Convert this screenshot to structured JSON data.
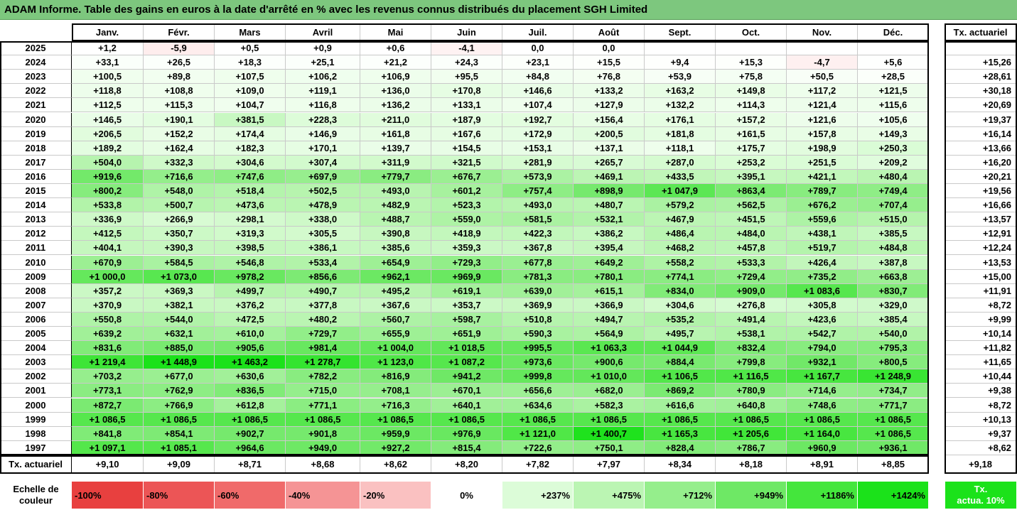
{
  "title": "ADAM Informe. Table des gains en euros à la date d'arrêté en % avec les revenus connus distribués du placement SGH Limited",
  "chart_data": {
    "type": "heatmap",
    "months": [
      "Janv.",
      "Févr.",
      "Mars",
      "Avril",
      "Mai",
      "Juin",
      "Juil.",
      "Août",
      "Sept.",
      "Oct.",
      "Nov.",
      "Déc."
    ],
    "rate_header": "Tx. actuariel",
    "rows": [
      {
        "year": "2025",
        "values": [
          "+1,2",
          "-5,9",
          "+0,5",
          "+0,9",
          "+0,6",
          "-4,1",
          "0,0",
          "0,0",
          "",
          "",
          "",
          ""
        ],
        "rate": ""
      },
      {
        "year": "2024",
        "values": [
          "+33,1",
          "+26,5",
          "+18,3",
          "+25,1",
          "+21,2",
          "+24,3",
          "+23,1",
          "+15,5",
          "+9,4",
          "+15,3",
          "-4,7",
          "+5,6"
        ],
        "rate": "+15,26"
      },
      {
        "year": "2023",
        "values": [
          "+100,5",
          "+89,8",
          "+107,5",
          "+106,2",
          "+106,9",
          "+95,5",
          "+84,8",
          "+76,8",
          "+53,9",
          "+75,8",
          "+50,5",
          "+28,5"
        ],
        "rate": "+28,61"
      },
      {
        "year": "2022",
        "values": [
          "+118,8",
          "+108,8",
          "+109,0",
          "+119,1",
          "+136,0",
          "+170,8",
          "+146,6",
          "+133,2",
          "+163,2",
          "+149,8",
          "+117,2",
          "+121,5"
        ],
        "rate": "+30,18"
      },
      {
        "year": "2021",
        "values": [
          "+112,5",
          "+115,3",
          "+104,7",
          "+116,8",
          "+136,2",
          "+133,1",
          "+107,4",
          "+127,9",
          "+132,2",
          "+114,3",
          "+121,4",
          "+115,6"
        ],
        "rate": "+20,69"
      },
      {
        "year": "2020",
        "values": [
          "+146,5",
          "+190,1",
          "+381,5",
          "+228,3",
          "+211,0",
          "+187,9",
          "+192,7",
          "+156,4",
          "+176,1",
          "+157,2",
          "+121,6",
          "+105,6"
        ],
        "rate": "+19,37"
      },
      {
        "year": "2019",
        "values": [
          "+206,5",
          "+152,2",
          "+174,4",
          "+146,9",
          "+161,8",
          "+167,6",
          "+172,9",
          "+200,5",
          "+181,8",
          "+161,5",
          "+157,8",
          "+149,3"
        ],
        "rate": "+16,14"
      },
      {
        "year": "2018",
        "values": [
          "+189,2",
          "+162,4",
          "+182,3",
          "+170,1",
          "+139,7",
          "+154,5",
          "+153,1",
          "+137,1",
          "+118,1",
          "+175,7",
          "+198,9",
          "+250,3"
        ],
        "rate": "+13,66"
      },
      {
        "year": "2017",
        "values": [
          "+504,0",
          "+332,3",
          "+304,6",
          "+307,4",
          "+311,9",
          "+321,5",
          "+281,9",
          "+265,7",
          "+287,0",
          "+253,2",
          "+251,5",
          "+209,2"
        ],
        "rate": "+16,20"
      },
      {
        "year": "2016",
        "values": [
          "+919,6",
          "+716,6",
          "+747,6",
          "+697,9",
          "+779,7",
          "+676,7",
          "+573,9",
          "+469,1",
          "+433,5",
          "+395,1",
          "+421,1",
          "+480,4"
        ],
        "rate": "+20,21"
      },
      {
        "year": "2015",
        "values": [
          "+800,2",
          "+548,0",
          "+518,4",
          "+502,5",
          "+493,0",
          "+601,2",
          "+757,4",
          "+898,9",
          "+1 047,9",
          "+863,4",
          "+789,7",
          "+749,4"
        ],
        "rate": "+19,56"
      },
      {
        "year": "2014",
        "values": [
          "+533,8",
          "+500,7",
          "+473,6",
          "+478,9",
          "+482,9",
          "+523,3",
          "+493,0",
          "+480,7",
          "+579,2",
          "+562,5",
          "+676,2",
          "+707,4"
        ],
        "rate": "+16,66"
      },
      {
        "year": "2013",
        "values": [
          "+336,9",
          "+266,9",
          "+298,1",
          "+338,0",
          "+488,7",
          "+559,0",
          "+581,5",
          "+532,1",
          "+467,9",
          "+451,5",
          "+559,6",
          "+515,0"
        ],
        "rate": "+13,57"
      },
      {
        "year": "2012",
        "values": [
          "+412,5",
          "+350,7",
          "+319,3",
          "+305,5",
          "+390,8",
          "+418,9",
          "+422,3",
          "+386,2",
          "+486,4",
          "+484,0",
          "+438,1",
          "+385,5"
        ],
        "rate": "+12,91"
      },
      {
        "year": "2011",
        "values": [
          "+404,1",
          "+390,3",
          "+398,5",
          "+386,1",
          "+385,6",
          "+359,3",
          "+367,8",
          "+395,4",
          "+468,2",
          "+457,8",
          "+519,7",
          "+484,8"
        ],
        "rate": "+12,24"
      },
      {
        "year": "2010",
        "values": [
          "+670,9",
          "+584,5",
          "+546,8",
          "+533,4",
          "+654,9",
          "+729,3",
          "+677,8",
          "+649,2",
          "+558,2",
          "+533,3",
          "+426,4",
          "+387,8"
        ],
        "rate": "+13,53"
      },
      {
        "year": "2009",
        "values": [
          "+1 000,0",
          "+1 073,0",
          "+978,2",
          "+856,6",
          "+962,1",
          "+969,9",
          "+781,3",
          "+780,1",
          "+774,1",
          "+729,4",
          "+735,2",
          "+663,8"
        ],
        "rate": "+15,00"
      },
      {
        "year": "2008",
        "values": [
          "+357,2",
          "+369,3",
          "+499,7",
          "+490,7",
          "+495,2",
          "+619,1",
          "+639,0",
          "+615,1",
          "+834,0",
          "+909,0",
          "+1 083,6",
          "+830,7"
        ],
        "rate": "+11,91"
      },
      {
        "year": "2007",
        "values": [
          "+370,9",
          "+382,1",
          "+376,2",
          "+377,8",
          "+367,6",
          "+353,7",
          "+369,9",
          "+366,9",
          "+304,6",
          "+276,8",
          "+305,8",
          "+329,0"
        ],
        "rate": "+8,72"
      },
      {
        "year": "2006",
        "values": [
          "+550,8",
          "+544,0",
          "+472,5",
          "+480,2",
          "+560,7",
          "+598,7",
          "+510,8",
          "+494,7",
          "+535,2",
          "+491,4",
          "+423,6",
          "+385,4"
        ],
        "rate": "+9,99"
      },
      {
        "year": "2005",
        "values": [
          "+639,2",
          "+632,1",
          "+610,0",
          "+729,7",
          "+655,9",
          "+651,9",
          "+590,3",
          "+564,9",
          "+495,7",
          "+538,1",
          "+542,7",
          "+540,0"
        ],
        "rate": "+10,14"
      },
      {
        "year": "2004",
        "values": [
          "+831,6",
          "+885,0",
          "+905,6",
          "+981,4",
          "+1 004,0",
          "+1 018,5",
          "+995,5",
          "+1 063,3",
          "+1 044,9",
          "+832,4",
          "+794,0",
          "+795,3"
        ],
        "rate": "+11,82"
      },
      {
        "year": "2003",
        "values": [
          "+1 219,4",
          "+1 448,9",
          "+1 463,2",
          "+1 278,7",
          "+1 123,0",
          "+1 087,2",
          "+973,6",
          "+900,6",
          "+884,4",
          "+799,8",
          "+932,1",
          "+800,5"
        ],
        "rate": "+11,65"
      },
      {
        "year": "2002",
        "values": [
          "+703,2",
          "+677,0",
          "+630,6",
          "+782,2",
          "+816,9",
          "+941,2",
          "+999,8",
          "+1 010,0",
          "+1 106,5",
          "+1 116,5",
          "+1 167,7",
          "+1 248,9"
        ],
        "rate": "+10,44"
      },
      {
        "year": "2001",
        "values": [
          "+773,1",
          "+762,9",
          "+836,5",
          "+715,0",
          "+708,1",
          "+670,1",
          "+656,6",
          "+682,0",
          "+869,2",
          "+780,9",
          "+714,6",
          "+734,7"
        ],
        "rate": "+9,38"
      },
      {
        "year": "2000",
        "values": [
          "+872,7",
          "+766,9",
          "+612,8",
          "+771,1",
          "+716,3",
          "+640,1",
          "+634,6",
          "+582,3",
          "+616,6",
          "+640,8",
          "+748,6",
          "+771,7"
        ],
        "rate": "+8,72"
      },
      {
        "year": "1999",
        "values": [
          "+1 086,5",
          "+1 086,5",
          "+1 086,5",
          "+1 086,5",
          "+1 086,5",
          "+1 086,5",
          "+1 086,5",
          "+1 086,5",
          "+1 086,5",
          "+1 086,5",
          "+1 086,5",
          "+1 086,5"
        ],
        "rate": "+10,13"
      },
      {
        "year": "1998",
        "values": [
          "+841,8",
          "+854,1",
          "+902,7",
          "+901,8",
          "+959,9",
          "+976,9",
          "+1 121,0",
          "+1 400,7",
          "+1 165,3",
          "+1 205,6",
          "+1 164,0",
          "+1 086,5"
        ],
        "rate": "+9,37"
      },
      {
        "year": "1997",
        "values": [
          "+1 097,1",
          "+1 085,1",
          "+964,6",
          "+949,0",
          "+927,2",
          "+815,4",
          "+722,6",
          "+750,1",
          "+828,4",
          "+786,7",
          "+960,9",
          "+936,1"
        ],
        "rate": "+8,62"
      }
    ],
    "footer": {
      "label": "Tx. actuariel",
      "values": [
        "+9,10",
        "+9,09",
        "+8,71",
        "+8,68",
        "+8,62",
        "+8,20",
        "+7,82",
        "+7,97",
        "+8,34",
        "+8,18",
        "+8,91",
        "+8,85"
      ],
      "rate": "+9,18"
    },
    "color_scale": {
      "title_line1": "Echelle de",
      "title_line2": "couleur",
      "stops": [
        {
          "label": "-100%",
          "value": -100,
          "color": "#e8403f"
        },
        {
          "label": "-80%",
          "value": -80,
          "color": "#ec5556"
        },
        {
          "label": "-60%",
          "value": -60,
          "color": "#f06a6a"
        },
        {
          "label": "-40%",
          "value": -40,
          "color": "#f59495"
        },
        {
          "label": "-20%",
          "value": -20,
          "color": "#fac1c1"
        },
        {
          "label": "0%",
          "value": 0,
          "color": "#ffffff"
        },
        {
          "label": "+237%",
          "value": 237,
          "color": "#dcfcd8"
        },
        {
          "label": "+475%",
          "value": 475,
          "color": "#bbf5b3"
        },
        {
          "label": "+712%",
          "value": 712,
          "color": "#95ee8c"
        },
        {
          "label": "+949%",
          "value": 949,
          "color": "#6ee865"
        },
        {
          "label": "+1186%",
          "value": 1186,
          "color": "#44e63c"
        },
        {
          "label": "+1424%",
          "value": 1424,
          "color": "#1be21a"
        }
      ],
      "rate_label_line1": "Tx.",
      "rate_label_line2": "actua. 10%",
      "rate_color": "#1be21a"
    },
    "ranges": {
      "min": -100,
      "max": 1424
    },
    "grid": true,
    "legend_placement": "bottom"
  }
}
